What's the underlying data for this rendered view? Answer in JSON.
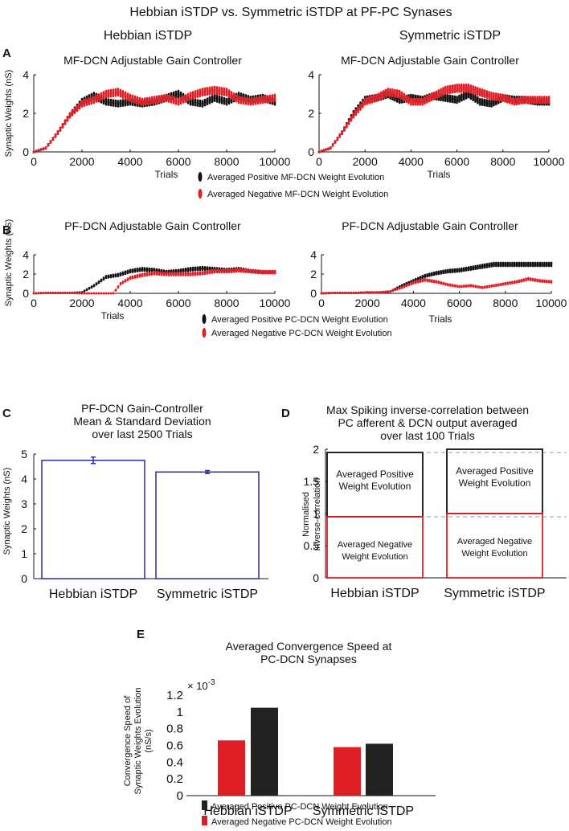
{
  "figure_title": "Hebbian iSTDP vs. Symmetric iSTDP at PF-PC Synases",
  "column_titles": [
    "Hebbian iSTDP",
    "Symmetric iSTDP"
  ],
  "panel_labels": [
    "A",
    "B",
    "C",
    "D",
    "E"
  ],
  "colors": {
    "positive": "#111111",
    "negative": "#e01e26",
    "bar_outline": "#2a2a9c",
    "error_bar": "#1a1acc"
  },
  "chart_data": [
    {
      "id": "A-hebbian",
      "type": "line",
      "title": "MF-DCN  Adjustable Gain Controller",
      "xlabel": "Trials",
      "ylabel": "Synaptic Weights (nS)",
      "xlim": [
        0,
        10000
      ],
      "ylim": [
        0,
        4
      ],
      "xticks": [
        "0",
        "2000",
        "4000",
        "6000",
        "8000",
        "10000"
      ],
      "yticks": [
        "0",
        "2",
        "4"
      ],
      "series": [
        {
          "name": "Averaged Positive MF-DCN Weight Evolution",
          "x": [
            0,
            500,
            1000,
            1500,
            2000,
            2500,
            3000,
            3500,
            4000,
            4500,
            5000,
            5500,
            6000,
            6500,
            7000,
            7500,
            8000,
            8500,
            9000,
            9500,
            10000
          ],
          "values": [
            0,
            0.2,
            1.0,
            1.9,
            2.6,
            2.9,
            2.6,
            2.5,
            2.6,
            2.5,
            2.6,
            2.8,
            3.0,
            2.6,
            2.5,
            2.8,
            2.6,
            2.9,
            2.7,
            2.8,
            2.6
          ]
        },
        {
          "name": "Averaged Negative MF-DCN Weight Evolution",
          "x": [
            0,
            500,
            1000,
            1500,
            2000,
            2500,
            3000,
            3500,
            4000,
            4500,
            5000,
            5500,
            6000,
            6500,
            7000,
            7500,
            8000,
            8500,
            9000,
            9500,
            10000
          ],
          "values": [
            0,
            0.2,
            1.0,
            1.9,
            2.5,
            2.7,
            3.0,
            3.1,
            2.8,
            2.6,
            2.7,
            2.8,
            2.6,
            2.9,
            3.1,
            3.2,
            3.1,
            2.7,
            2.6,
            2.7,
            2.8
          ]
        }
      ]
    },
    {
      "id": "A-symmetric",
      "type": "line",
      "title": "MF-DCN  Adjustable Gain Controller",
      "xlabel": "Trials",
      "ylabel": "",
      "xlim": [
        0,
        10000
      ],
      "ylim": [
        0,
        4
      ],
      "xticks": [
        "0",
        "2000",
        "4000",
        "6000",
        "8000",
        "10000"
      ],
      "yticks": [
        "0",
        "2",
        "4"
      ],
      "series": [
        {
          "name": "Averaged Positive MF-DCN Weight Evolution",
          "x": [
            0,
            500,
            1000,
            1500,
            2000,
            2500,
            3000,
            3500,
            4000,
            4500,
            5000,
            5500,
            6000,
            6500,
            7000,
            7500,
            8000,
            8500,
            9000,
            9500,
            10000
          ],
          "values": [
            0,
            0.2,
            1.0,
            2.0,
            2.7,
            2.8,
            3.0,
            2.7,
            2.8,
            2.7,
            2.9,
            2.8,
            2.7,
            3.0,
            2.6,
            2.5,
            2.8,
            2.7,
            2.7,
            2.6,
            2.6
          ]
        },
        {
          "name": "Averaged Negative MF-DCN Weight Evolution",
          "x": [
            0,
            500,
            1000,
            1500,
            2000,
            2500,
            3000,
            3500,
            4000,
            4500,
            5000,
            5500,
            6000,
            6500,
            7000,
            7500,
            8000,
            8500,
            9000,
            9500,
            10000
          ],
          "values": [
            0,
            0.2,
            1.0,
            1.9,
            2.6,
            2.8,
            3.1,
            3.0,
            2.6,
            2.6,
            2.9,
            3.2,
            3.3,
            3.3,
            3.1,
            2.9,
            2.8,
            2.6,
            2.7,
            2.7,
            2.7
          ]
        }
      ]
    },
    {
      "id": "B-hebbian",
      "type": "line",
      "title": "PF-DCN  Adjustable Gain Controller",
      "xlabel": "Trials",
      "ylabel": "Synaptic Weights (nS)",
      "xlim": [
        0,
        10000
      ],
      "ylim": [
        0,
        4
      ],
      "xticks": [
        "0",
        "2000",
        "4000",
        "6000",
        "8000",
        "10000"
      ],
      "yticks": [
        "0",
        "2",
        "4"
      ],
      "series": [
        {
          "name": "Averaged Positive PC-DCN Weight Evolution",
          "x": [
            0,
            500,
            1000,
            1500,
            2000,
            2500,
            3000,
            3500,
            4000,
            4500,
            5000,
            5500,
            6000,
            6500,
            7000,
            7500,
            8000,
            8500,
            9000,
            9500,
            10000
          ],
          "values": [
            0,
            0.05,
            0.05,
            0.05,
            0.1,
            0.8,
            1.7,
            1.9,
            2.3,
            2.5,
            2.4,
            2.2,
            2.3,
            2.5,
            2.6,
            2.5,
            2.4,
            2.5,
            2.3,
            2.2,
            2.2
          ]
        },
        {
          "name": "Averaged Negative PC-DCN Weight Evolution",
          "x": [
            0,
            500,
            1000,
            1500,
            2000,
            2500,
            3000,
            3300,
            3600,
            4000,
            4500,
            5000,
            5500,
            6000,
            6500,
            7000,
            7500,
            8000,
            8500,
            9000,
            9500,
            10000
          ],
          "values": [
            0,
            0.05,
            0.05,
            0.05,
            0,
            0,
            0,
            0,
            1.0,
            1.6,
            1.9,
            2.1,
            2.0,
            2.0,
            2.0,
            2.1,
            2.3,
            2.3,
            2.4,
            2.3,
            2.2,
            2.2
          ]
        }
      ]
    },
    {
      "id": "B-symmetric",
      "type": "line",
      "title": "PF-DCN  Adjustable Gain Controller",
      "xlabel": "Trials",
      "ylabel": "",
      "xlim": [
        0,
        10000
      ],
      "ylim": [
        0,
        4
      ],
      "xticks": [
        "0",
        "2000",
        "4000",
        "6000",
        "8000",
        "10000"
      ],
      "yticks": [
        "0",
        "2",
        "4"
      ],
      "series": [
        {
          "name": "Averaged Positive PC-DCN Weight Evolution",
          "x": [
            0,
            500,
            1000,
            1500,
            2000,
            2500,
            3000,
            3500,
            4000,
            4500,
            5000,
            5500,
            6000,
            6500,
            7000,
            7500,
            8000,
            8500,
            9000,
            9500,
            10000
          ],
          "values": [
            0,
            0.05,
            0.05,
            0.05,
            0.1,
            0.1,
            0.2,
            0.8,
            1.3,
            1.8,
            2.1,
            2.3,
            2.4,
            2.6,
            2.8,
            3.0,
            3.0,
            3.0,
            3.0,
            3.0,
            3.0
          ]
        },
        {
          "name": "Averaged Negative PC-DCN Weight Evolution",
          "x": [
            0,
            500,
            1000,
            1500,
            2000,
            2500,
            3000,
            3500,
            4000,
            4500,
            5000,
            5500,
            6000,
            6500,
            7000,
            7500,
            8000,
            8500,
            9000,
            9500,
            10000
          ],
          "values": [
            0,
            0.05,
            0.05,
            0.05,
            0.1,
            0.1,
            0.2,
            0.6,
            1.1,
            1.4,
            1.2,
            0.9,
            0.7,
            0.8,
            0.6,
            0.8,
            1.0,
            1.2,
            1.5,
            1.3,
            1.2
          ]
        }
      ]
    },
    {
      "id": "C",
      "type": "bar",
      "title": "PF-DCN  Gain-Controller\nMean & Standard Deviation\nover last 2500 Trials",
      "xlabel": "",
      "ylabel": "Synaptic Weights (nS)",
      "ylim": [
        0,
        5
      ],
      "yticks": [
        "0",
        "1",
        "2",
        "3",
        "4",
        "5"
      ],
      "categories": [
        "Hebbian iSTDP",
        "Symmetric iSTDP"
      ],
      "values": [
        4.75,
        4.28
      ],
      "errors": [
        0.13,
        0.06
      ]
    },
    {
      "id": "D",
      "type": "bar",
      "title": "Max Spiking inverse-correlation between\nPC afferent & DCN  output averaged\nover last 100 Trials",
      "xlabel": "",
      "ylabel": "Normalised\ninverse-correlation",
      "ylim": [
        0,
        2
      ],
      "yticks": [
        "0",
        "0.5",
        "1",
        "1.5",
        "2"
      ],
      "categories": [
        "Hebbian iSTDP",
        "Symmetric iSTDP"
      ],
      "series": [
        {
          "name": "Averaged Negative\nWeight Evolution",
          "values": [
            0.95,
            1.0
          ]
        },
        {
          "name": "Averaged Positive\nWeight Evolution",
          "values": [
            1.0,
            1.0
          ]
        }
      ],
      "reference_lines": [
        1.95,
        0.95
      ]
    },
    {
      "id": "E",
      "type": "bar",
      "title": "Averaged Convergence Speed at\nPC-DCN  Synapses",
      "xlabel": "",
      "ylabel": "Convergence Speed of\nSynaptic Weights Evolution\n(nS/s)",
      "ylim": [
        0,
        1.2
      ],
      "yticks": [
        "0",
        "0.2",
        "0.4",
        "0.6",
        "0.8",
        "1",
        "1.2"
      ],
      "y_exponent_label": "× 10",
      "y_exponent_power": "-3",
      "categories": [
        "Hebbian iSTDP",
        "Symmetric iSTDP"
      ],
      "series": [
        {
          "name": "Averaged Negative PC-DCN Weight Evolution",
          "values": [
            0.66,
            0.58
          ]
        },
        {
          "name": "Averaged Positive PC-DCN Weight Evolution",
          "values": [
            1.05,
            0.62
          ]
        }
      ]
    }
  ]
}
